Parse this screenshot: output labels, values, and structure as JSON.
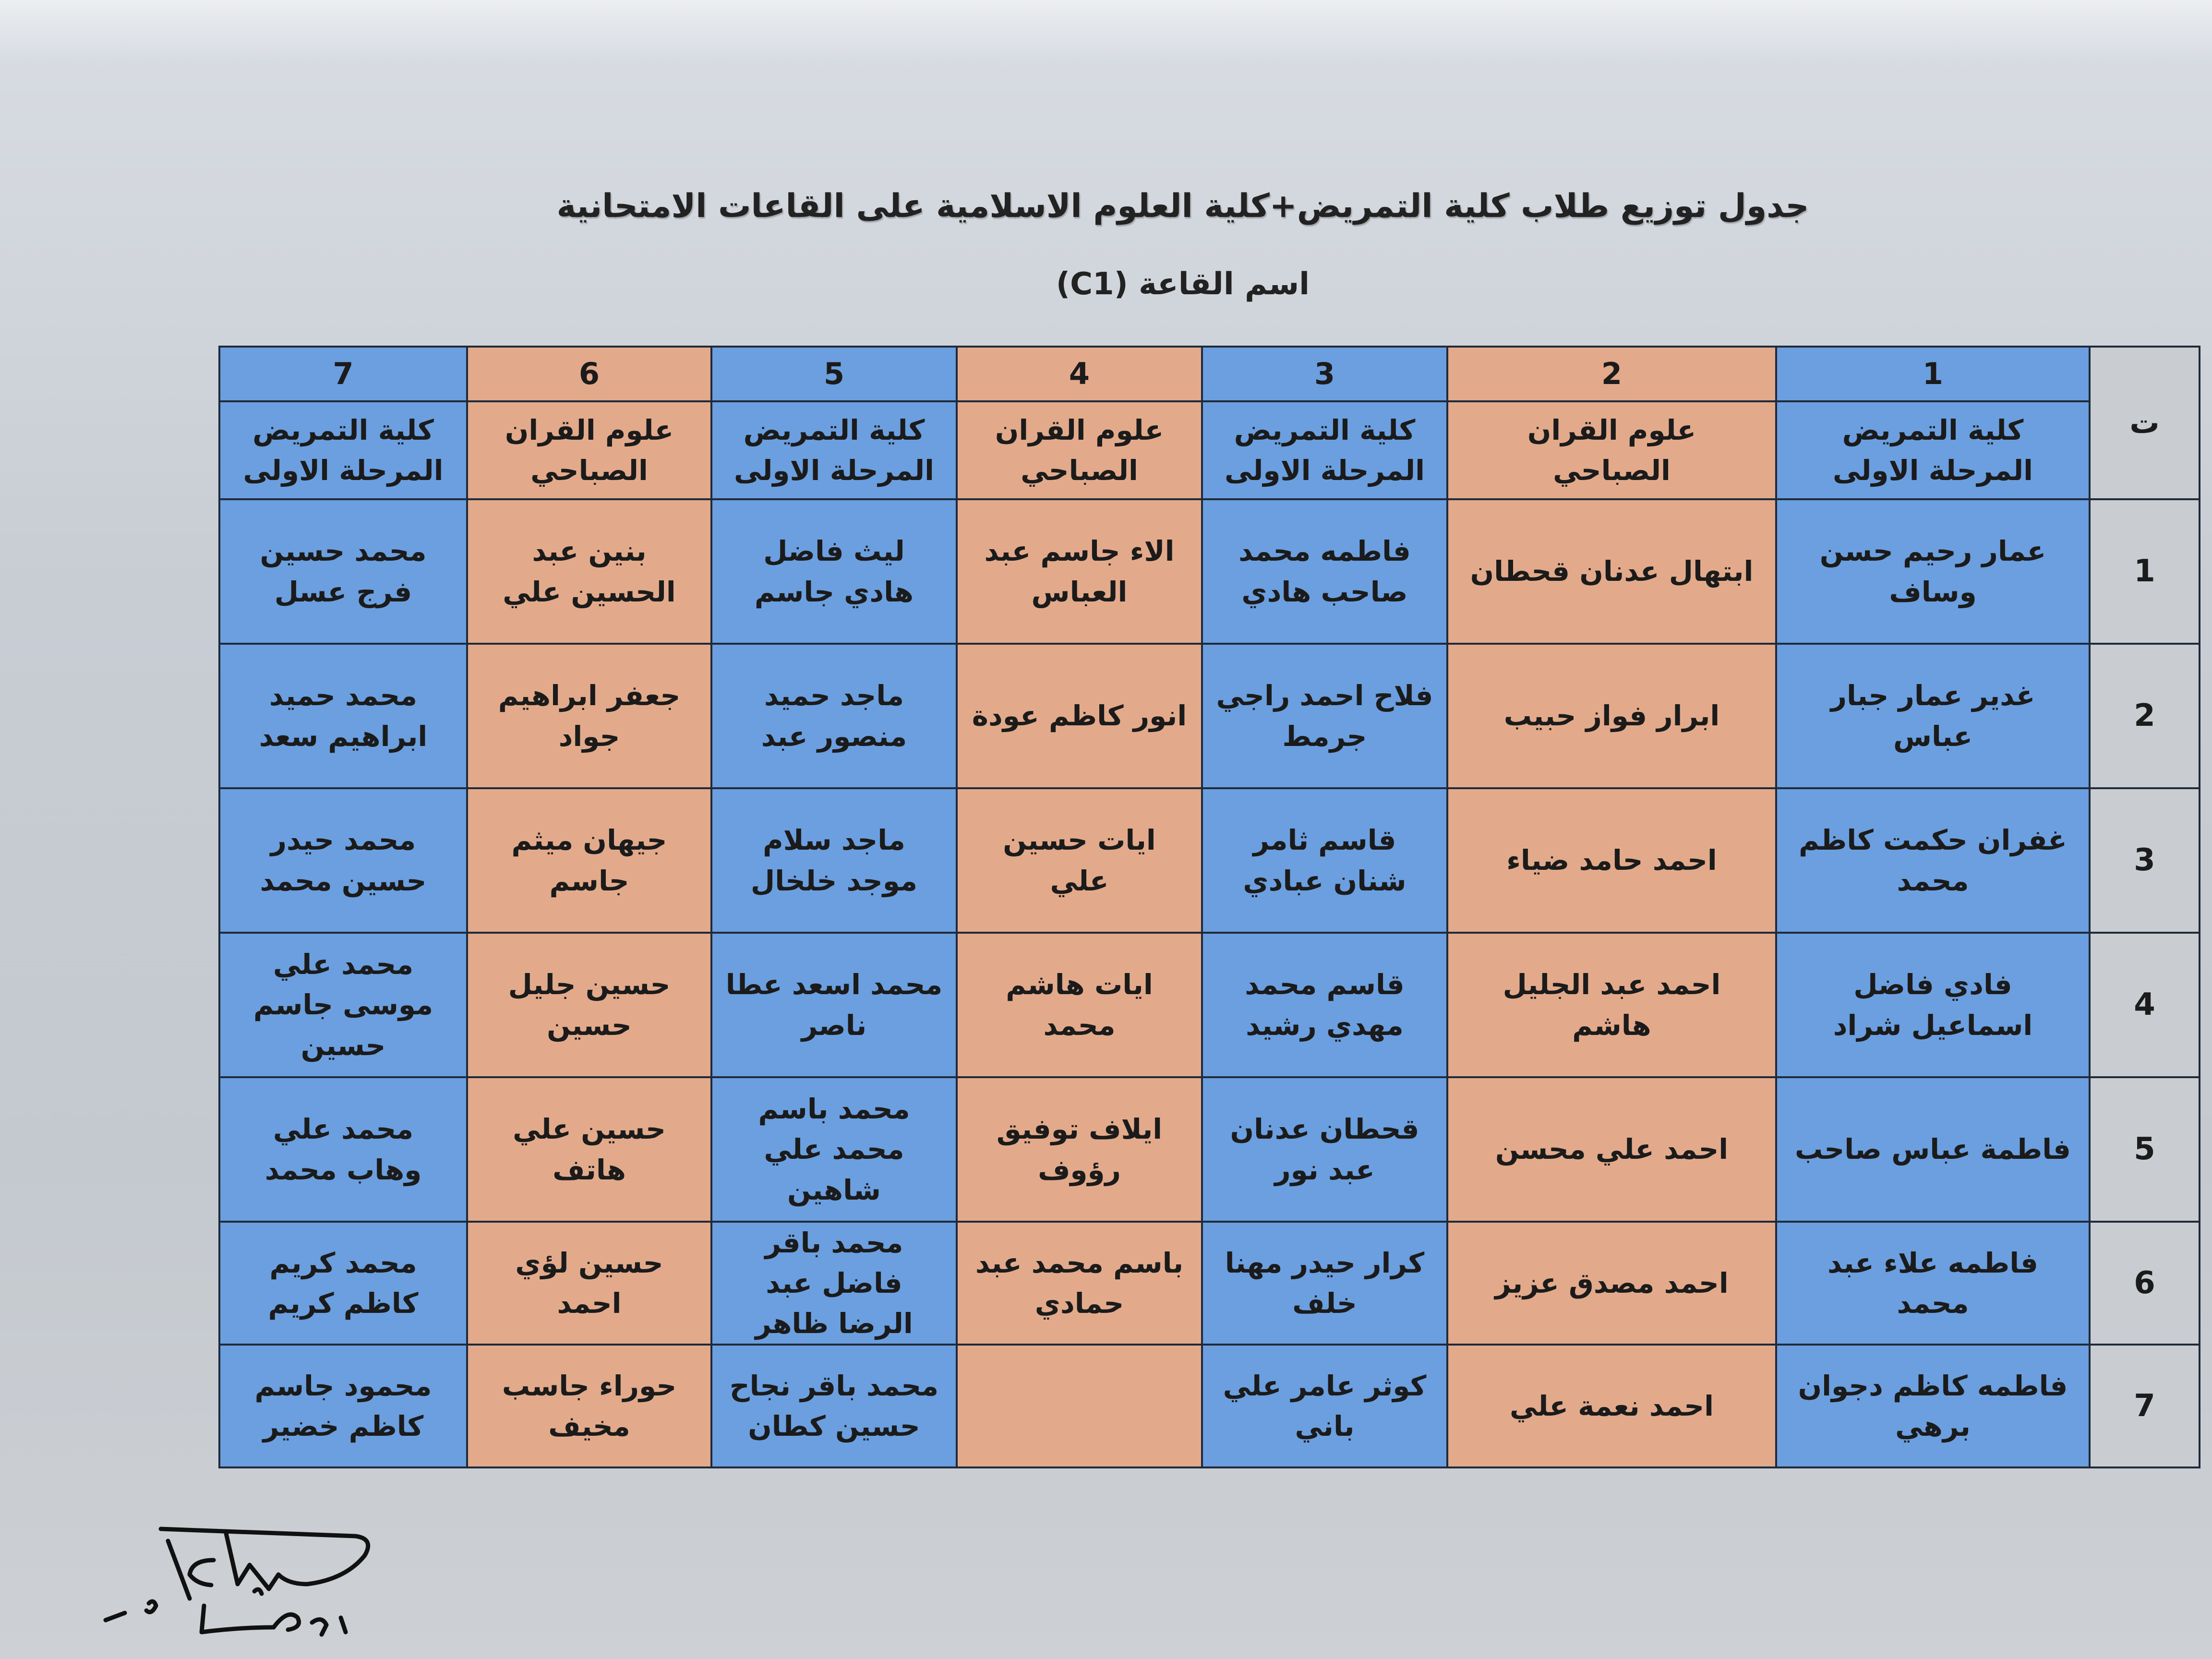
{
  "document": {
    "title": "جدول توزيع طلاب كلية التمريض+كلية العلوم الاسلامية على القاعات الامتحانية",
    "room_label": "اسم القاعة (C1)"
  },
  "colors": {
    "nursing": "#6b9fdf",
    "quran": "#e2aa8b",
    "index_column": "#c9cdd2"
  },
  "table": {
    "index_header": "ت",
    "columns": [
      {
        "num": "1",
        "college": "كلية التمريض",
        "stage": "المرحلة الاولى",
        "type": "blue"
      },
      {
        "num": "2",
        "college": "علوم القران",
        "stage": "الصباحي",
        "type": "orange"
      },
      {
        "num": "3",
        "college": "كلية التمريض",
        "stage": "المرحلة الاولى",
        "type": "blue"
      },
      {
        "num": "4",
        "college": "علوم القران",
        "stage": "الصباحي",
        "type": "orange"
      },
      {
        "num": "5",
        "college": "كلية التمريض",
        "stage": "المرحلة الاولى",
        "type": "blue"
      },
      {
        "num": "6",
        "college": "علوم القران",
        "stage": "الصباحي",
        "type": "orange"
      },
      {
        "num": "7",
        "college": "كلية التمريض",
        "stage": "المرحلة الاولى",
        "type": "blue"
      }
    ],
    "rows": [
      {
        "index": "1",
        "cells": [
          "عمار رحيم حسن وساف",
          "ابتهال عدنان قحطان",
          "فاطمه محمد صاحب هادي",
          "الاء جاسم عبد العباس",
          "ليث فاضل هادي جاسم",
          "بنين عبد الحسين علي",
          "محمد حسين فرج عسل"
        ]
      },
      {
        "index": "2",
        "cells": [
          "غدير عمار جبار عباس",
          "ابرار فواز حبيب",
          "فلاح احمد راجي جرمط",
          "انور كاظم عودة",
          "ماجد حميد منصور عبد",
          "جعفر ابراهيم جواد",
          "محمد حميد ابراهيم سعد"
        ]
      },
      {
        "index": "3",
        "cells": [
          "غفران حكمت كاظم محمد",
          "احمد حامد ضياء",
          "قاسم ثامر شنان عبادي",
          "ايات حسين علي",
          "ماجد سلام موجد خلخال",
          "جيهان ميثم جاسم",
          "محمد حيدر حسين محمد"
        ]
      },
      {
        "index": "4",
        "cells": [
          "فادي فاضل اسماعيل شراد",
          "احمد عبد الجليل هاشم",
          "قاسم محمد مهدي رشيد",
          "ايات هاشم محمد",
          "محمد اسعد عطا ناصر",
          "حسين جليل حسين",
          "محمد علي موسى جاسم حسين"
        ]
      },
      {
        "index": "5",
        "cells": [
          "فاطمة عباس صاحب",
          "احمد علي محسن",
          "قحطان عدنان عبد نور",
          "ايلاف توفيق رؤوف",
          "محمد باسم محمد علي شاهين",
          "حسين علي هاتف",
          "محمد علي وهاب محمد"
        ]
      },
      {
        "index": "6",
        "cells": [
          "فاطمه علاء عبد محمد",
          "احمد مصدق عزيز",
          "كرار حيدر مهنا خلف",
          "باسم محمد عبد حمادي",
          "محمد باقر فاضل عبد الرضا ظاهر",
          "حسين لؤي احمد",
          "محمد كريم كاظم كريم"
        ]
      },
      {
        "index": "7",
        "cells": [
          "فاطمه كاظم دجوان برهي",
          "احمد نعمة علي",
          "كوثر عامر علي باني",
          "",
          "محمد باقر نجاح حسين كطان",
          "حوراء جاسب مخيف",
          "محمود جاسم كاظم خضير"
        ]
      }
    ]
  }
}
